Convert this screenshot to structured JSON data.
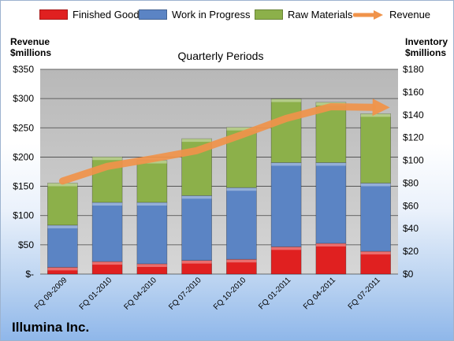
{
  "chart_data": {
    "type": "bar",
    "title": "Quarterly Periods",
    "company": "Illumina Inc.",
    "left_axis_title": [
      "Revenue",
      "$millions"
    ],
    "right_axis_title": [
      "Inventory",
      "$millions"
    ],
    "categories": [
      "FQ 09-2009",
      "FQ 01-2010",
      "FQ 04-2010",
      "FQ 07-2010",
      "FQ 10-2010",
      "FQ 01-2011",
      "FQ 04-2011",
      "FQ 07-2011"
    ],
    "left_ticks": [
      "$-",
      "$50",
      "$100",
      "$150",
      "$200",
      "$250",
      "$300",
      "$350"
    ],
    "right_ticks": [
      "$0",
      "$20",
      "$40",
      "$60",
      "$80",
      "$100",
      "$120",
      "$140",
      "$160",
      "$180"
    ],
    "ylim_left": [
      0,
      350
    ],
    "ylim_right": [
      0,
      180
    ],
    "stacked": true,
    "grid": true,
    "legend_position": "top",
    "series": [
      {
        "name": "Finished Goods",
        "axis": "right",
        "color": "#e02020",
        "values": [
          6,
          11,
          9,
          12,
          13,
          24,
          27,
          20
        ]
      },
      {
        "name": "Work in Progress",
        "axis": "right",
        "color": "#5b84c4",
        "values": [
          37,
          52,
          54,
          57,
          63,
          74,
          71,
          60
        ]
      },
      {
        "name": "Raw Materials",
        "axis": "right",
        "color": "#8cb04a",
        "values": [
          37,
          40,
          37,
          50,
          53,
          56,
          53,
          61
        ]
      },
      {
        "name": "Revenue",
        "axis": "left",
        "type": "line",
        "color": "#f0934a",
        "values": [
          159,
          184,
          197,
          211,
          238,
          266,
          286,
          285
        ]
      }
    ]
  }
}
